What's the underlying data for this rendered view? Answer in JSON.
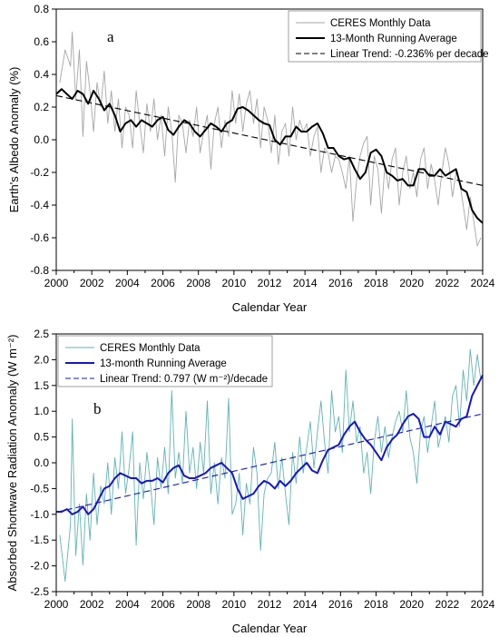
{
  "chart_data": [
    {
      "type": "line",
      "panel_label": "a",
      "title": "",
      "xlabel": "Calendar Year",
      "ylabel": "Earth's Albedo Anomaly (%)",
      "xlim": [
        2000,
        2024
      ],
      "ylim": [
        -0.8,
        0.8
      ],
      "x_ticks": [
        "2000",
        "2002",
        "2004",
        "2006",
        "2008",
        "2010",
        "2012",
        "2014",
        "2016",
        "2018",
        "2020",
        "2022",
        "2024"
      ],
      "y_ticks": [
        "-0.8",
        "-0.6",
        "-0.4",
        "-0.2",
        "0.0",
        "0.2",
        "0.4",
        "0.6",
        "0.8"
      ],
      "grid": false,
      "legend_position": "top-right",
      "series": [
        {
          "name": "CERES Monthly Data",
          "color": "#a6a6a6",
          "style": "thin-solid",
          "x": [
            2000.2,
            2000.5,
            2000.8,
            2000.9,
            2001.1,
            2001.3,
            2001.5,
            2001.7,
            2001.9,
            2002.1,
            2002.3,
            2002.5,
            2002.7,
            2002.9,
            2003.1,
            2003.3,
            2003.5,
            2003.7,
            2003.9,
            2004.1,
            2004.3,
            2004.5,
            2004.7,
            2004.9,
            2005.1,
            2005.3,
            2005.5,
            2005.7,
            2005.9,
            2006.1,
            2006.3,
            2006.5,
            2006.7,
            2006.9,
            2007.1,
            2007.3,
            2007.5,
            2007.7,
            2007.9,
            2008.1,
            2008.3,
            2008.5,
            2008.7,
            2008.9,
            2009.1,
            2009.3,
            2009.5,
            2009.7,
            2009.9,
            2010.1,
            2010.3,
            2010.5,
            2010.7,
            2010.9,
            2011.1,
            2011.3,
            2011.5,
            2011.7,
            2011.9,
            2012.1,
            2012.3,
            2012.5,
            2012.7,
            2012.9,
            2013.1,
            2013.3,
            2013.5,
            2013.7,
            2013.9,
            2014.1,
            2014.3,
            2014.5,
            2014.7,
            2014.9,
            2015.1,
            2015.3,
            2015.5,
            2015.7,
            2015.9,
            2016.1,
            2016.3,
            2016.5,
            2016.7,
            2016.9,
            2017.1,
            2017.3,
            2017.5,
            2017.7,
            2017.9,
            2018.1,
            2018.3,
            2018.5,
            2018.7,
            2018.9,
            2019.1,
            2019.3,
            2019.5,
            2019.7,
            2019.9,
            2020.1,
            2020.3,
            2020.5,
            2020.7,
            2020.9,
            2021.1,
            2021.3,
            2021.5,
            2021.7,
            2021.9,
            2022.1,
            2022.3,
            2022.5,
            2022.7,
            2022.9,
            2023.1,
            2023.3,
            2023.5,
            2023.7,
            2023.9
          ],
          "y": [
            0.35,
            0.55,
            0.45,
            0.66,
            0.25,
            0.55,
            0.02,
            0.48,
            0.3,
            0.05,
            0.35,
            0.2,
            0.42,
            0.1,
            0.3,
            0.05,
            0.25,
            -0.05,
            0.2,
            0.15,
            -0.05,
            0.3,
            0.1,
            -0.08,
            0.22,
            0.05,
            0.25,
            0.0,
            0.15,
            -0.1,
            0.2,
            0.05,
            -0.26,
            0.15,
            0.1,
            -0.08,
            0.12,
            0.02,
            0.2,
            -0.08,
            0.05,
            0.15,
            -0.18,
            0.1,
            0.2,
            -0.05,
            0.12,
            0.02,
            0.3,
            0.1,
            0.28,
            0.05,
            0.22,
            0.3,
            0.1,
            0.25,
            -0.05,
            0.2,
            0.12,
            -0.08,
            0.15,
            -0.15,
            0.05,
            0.1,
            -0.1,
            0.2,
            0.0,
            0.12,
            0.05,
            0.1,
            -0.1,
            0.02,
            0.08,
            -0.2,
            -0.05,
            -0.08,
            -0.2,
            -0.1,
            -0.12,
            -0.2,
            -0.3,
            -0.1,
            -0.5,
            -0.25,
            -0.1,
            -0.02,
            0.02,
            -0.4,
            -0.1,
            -0.18,
            -0.45,
            -0.15,
            -0.3,
            -0.12,
            -0.05,
            -0.4,
            -0.2,
            -0.1,
            -0.3,
            -0.2,
            -0.35,
            -0.12,
            -0.05,
            -0.3,
            -0.15,
            -0.25,
            -0.4,
            -0.2,
            -0.05,
            -0.15,
            -0.35,
            -0.2,
            -0.25,
            -0.4,
            -0.55,
            -0.35,
            -0.5,
            -0.65,
            -0.6
          ]
        },
        {
          "name": "13-Month Running Average",
          "color": "#000000",
          "style": "thick-solid",
          "x": [
            2000,
            2000.3,
            2000.6,
            2000.9,
            2001.2,
            2001.5,
            2001.8,
            2002.1,
            2002.4,
            2002.7,
            2003.0,
            2003.3,
            2003.6,
            2003.9,
            2004.2,
            2004.5,
            2004.8,
            2005.1,
            2005.4,
            2005.7,
            2006.0,
            2006.3,
            2006.6,
            2006.9,
            2007.2,
            2007.5,
            2007.8,
            2008.1,
            2008.4,
            2008.7,
            2009.0,
            2009.3,
            2009.6,
            2009.9,
            2010.2,
            2010.5,
            2010.8,
            2011.1,
            2011.4,
            2011.7,
            2012.0,
            2012.3,
            2012.6,
            2012.9,
            2013.2,
            2013.5,
            2013.8,
            2014.1,
            2014.4,
            2014.7,
            2015.0,
            2015.3,
            2015.6,
            2015.9,
            2016.2,
            2016.5,
            2016.8,
            2017.1,
            2017.4,
            2017.7,
            2018.0,
            2018.3,
            2018.6,
            2018.9,
            2019.2,
            2019.5,
            2019.8,
            2020.1,
            2020.4,
            2020.7,
            2021.0,
            2021.3,
            2021.6,
            2021.9,
            2022.2,
            2022.5,
            2022.8,
            2023.1,
            2023.4,
            2023.7,
            2024.0
          ],
          "y": [
            0.28,
            0.31,
            0.28,
            0.25,
            0.3,
            0.28,
            0.22,
            0.3,
            0.25,
            0.18,
            0.22,
            0.15,
            0.05,
            0.1,
            0.12,
            0.08,
            0.12,
            0.1,
            0.08,
            0.12,
            0.14,
            0.06,
            0.03,
            0.08,
            0.12,
            0.1,
            0.05,
            0.02,
            0.06,
            0.1,
            0.08,
            0.05,
            0.1,
            0.12,
            0.19,
            0.2,
            0.18,
            0.15,
            0.12,
            0.1,
            0.09,
            0.0,
            -0.03,
            0.02,
            0.02,
            0.08,
            0.05,
            0.05,
            0.08,
            0.1,
            0.04,
            -0.05,
            -0.05,
            -0.1,
            -0.12,
            -0.11,
            -0.18,
            -0.24,
            -0.2,
            -0.08,
            -0.06,
            -0.1,
            -0.2,
            -0.22,
            -0.25,
            -0.24,
            -0.28,
            -0.28,
            -0.18,
            -0.18,
            -0.22,
            -0.22,
            -0.18,
            -0.22,
            -0.2,
            -0.18,
            -0.3,
            -0.32,
            -0.43,
            -0.48,
            -0.51
          ]
        },
        {
          "name": "Linear Trend: -0.236% per decade",
          "color": "#000000",
          "style": "dashed",
          "x": [
            2000,
            2024
          ],
          "y": [
            0.27,
            -0.28
          ]
        }
      ]
    },
    {
      "type": "line",
      "panel_label": "b",
      "title": "",
      "xlabel": "Calendar Year",
      "ylabel": "Absorbed Shortwave Radiation Anomaly (W m⁻²)",
      "xlim": [
        2000,
        2024
      ],
      "ylim": [
        -2.5,
        2.5
      ],
      "x_ticks": [
        "2000",
        "2002",
        "2004",
        "2006",
        "2008",
        "2010",
        "2012",
        "2014",
        "2016",
        "2018",
        "2020",
        "2022",
        "2024"
      ],
      "y_ticks": [
        "-2.5",
        "-2.0",
        "-1.5",
        "-1.0",
        "-0.5",
        "0.0",
        "0.5",
        "1.0",
        "1.5",
        "2.0",
        "2.5"
      ],
      "grid": false,
      "legend_position": "top-left",
      "series": [
        {
          "name": "CERES Monthly Data",
          "color": "#5fb3b3",
          "style": "thin-solid",
          "x": [
            2000.2,
            2000.5,
            2000.8,
            2000.9,
            2001.1,
            2001.3,
            2001.5,
            2001.7,
            2001.9,
            2002.1,
            2002.3,
            2002.5,
            2002.7,
            2002.9,
            2003.1,
            2003.3,
            2003.5,
            2003.7,
            2003.9,
            2004.1,
            2004.3,
            2004.5,
            2004.7,
            2004.9,
            2005.1,
            2005.3,
            2005.5,
            2005.7,
            2005.9,
            2006.1,
            2006.3,
            2006.5,
            2006.7,
            2006.9,
            2007.1,
            2007.3,
            2007.5,
            2007.7,
            2007.9,
            2008.1,
            2008.3,
            2008.5,
            2008.7,
            2008.9,
            2009.1,
            2009.3,
            2009.5,
            2009.7,
            2009.9,
            2010.1,
            2010.3,
            2010.5,
            2010.7,
            2010.9,
            2011.1,
            2011.3,
            2011.5,
            2011.7,
            2011.9,
            2012.1,
            2012.3,
            2012.5,
            2012.7,
            2012.9,
            2013.1,
            2013.3,
            2013.5,
            2013.7,
            2013.9,
            2014.1,
            2014.3,
            2014.5,
            2014.7,
            2014.9,
            2015.1,
            2015.3,
            2015.5,
            2015.7,
            2015.9,
            2016.1,
            2016.3,
            2016.5,
            2016.7,
            2016.9,
            2017.1,
            2017.3,
            2017.5,
            2017.7,
            2017.9,
            2018.1,
            2018.3,
            2018.5,
            2018.7,
            2018.9,
            2019.1,
            2019.3,
            2019.5,
            2019.7,
            2019.9,
            2020.1,
            2020.3,
            2020.5,
            2020.7,
            2020.9,
            2021.1,
            2021.3,
            2021.5,
            2021.7,
            2021.9,
            2022.1,
            2022.3,
            2022.5,
            2022.7,
            2022.9,
            2023.1,
            2023.3,
            2023.5,
            2023.7,
            2023.9
          ],
          "y": [
            -1.4,
            -2.3,
            -1.2,
            0.85,
            -1.8,
            -0.8,
            -1.98,
            -0.6,
            -1.5,
            -0.2,
            -1.2,
            -0.45,
            -0.8,
            0.0,
            -1.0,
            0.1,
            -0.5,
            0.6,
            -0.6,
            -0.1,
            0.6,
            -1.6,
            0.0,
            -0.7,
            0.2,
            -0.4,
            -1.2,
            0.1,
            -0.5,
            0.3,
            -0.6,
            1.4,
            -0.3,
            0.2,
            -0.4,
            1.0,
            -0.2,
            0.3,
            -0.5,
            0.4,
            -0.2,
            1.2,
            -0.6,
            0.0,
            -0.8,
            0.1,
            -0.3,
            1.25,
            -1.0,
            -0.8,
            -0.2,
            -1.4,
            -0.4,
            -0.8,
            0.3,
            -0.2,
            -1.7,
            -0.6,
            -0.3,
            -0.2,
            0.4,
            -0.5,
            0.1,
            -0.6,
            -1.2,
            0.2,
            -0.4,
            0.5,
            -0.2,
            0.3,
            0.8,
            -0.1,
            0.6,
            1.2,
            0.4,
            -0.2,
            1.4,
            0.6,
            0.9,
            0.2,
            1.8,
            0.6,
            1.2,
            0.4,
            0.7,
            -0.2,
            0.2,
            -0.6,
            0.4,
            0.9,
            0.2,
            0.7,
            0.1,
            0.5,
            0.8,
            1.0,
            0.6,
            1.4,
            0.5,
            0.2,
            -0.4,
            0.6,
            0.9,
            0.2,
            0.7,
            1.2,
            0.3,
            0.6,
            0.9,
            0.4,
            1.3,
            1.5,
            0.7,
            1.8,
            1.2,
            2.2,
            1.5,
            2.1,
            1.6
          ]
        },
        {
          "name": "13-month Running Average",
          "color": "#1515c8",
          "style": "thick-solid",
          "x": [
            2000,
            2000.3,
            2000.6,
            2000.9,
            2001.2,
            2001.5,
            2001.8,
            2002.1,
            2002.4,
            2002.7,
            2003.0,
            2003.3,
            2003.6,
            2003.9,
            2004.2,
            2004.5,
            2004.8,
            2005.1,
            2005.4,
            2005.7,
            2006.0,
            2006.3,
            2006.6,
            2006.9,
            2007.2,
            2007.5,
            2007.8,
            2008.1,
            2008.4,
            2008.7,
            2009.0,
            2009.3,
            2009.6,
            2009.9,
            2010.2,
            2010.5,
            2010.8,
            2011.1,
            2011.4,
            2011.7,
            2012.0,
            2012.3,
            2012.6,
            2012.9,
            2013.2,
            2013.5,
            2013.8,
            2014.1,
            2014.4,
            2014.7,
            2015.0,
            2015.3,
            2015.6,
            2015.9,
            2016.2,
            2016.5,
            2016.8,
            2017.1,
            2017.4,
            2017.7,
            2018.0,
            2018.3,
            2018.6,
            2018.9,
            2019.2,
            2019.5,
            2019.8,
            2020.1,
            2020.4,
            2020.7,
            2021.0,
            2021.3,
            2021.6,
            2021.9,
            2022.2,
            2022.5,
            2022.8,
            2023.1,
            2023.4,
            2023.7,
            2024.0
          ],
          "y": [
            -0.95,
            -0.95,
            -0.9,
            -1.0,
            -0.95,
            -0.85,
            -1.0,
            -0.9,
            -0.7,
            -0.5,
            -0.45,
            -0.3,
            -0.2,
            -0.25,
            -0.3,
            -0.3,
            -0.4,
            -0.35,
            -0.35,
            -0.3,
            -0.38,
            -0.2,
            -0.1,
            -0.05,
            -0.25,
            -0.3,
            -0.3,
            -0.25,
            -0.2,
            -0.1,
            -0.05,
            0.0,
            -0.1,
            -0.2,
            -0.5,
            -0.7,
            -0.65,
            -0.6,
            -0.45,
            -0.35,
            -0.4,
            -0.5,
            -0.35,
            -0.45,
            -0.35,
            -0.2,
            -0.1,
            0.0,
            -0.15,
            -0.2,
            0.05,
            0.25,
            0.3,
            0.35,
            0.55,
            0.7,
            0.8,
            0.6,
            0.45,
            0.35,
            0.2,
            0.05,
            0.3,
            0.45,
            0.55,
            0.75,
            0.9,
            0.95,
            0.85,
            0.5,
            0.5,
            0.7,
            0.55,
            0.8,
            0.75,
            0.7,
            0.85,
            0.9,
            1.3,
            1.5,
            1.7
          ]
        },
        {
          "name": "Linear Trend: 0.797 (W m⁻²)/decade",
          "color": "#1515c8",
          "style": "dashed",
          "x": [
            2000,
            2024
          ],
          "y": [
            -0.96,
            0.95
          ]
        }
      ]
    }
  ]
}
